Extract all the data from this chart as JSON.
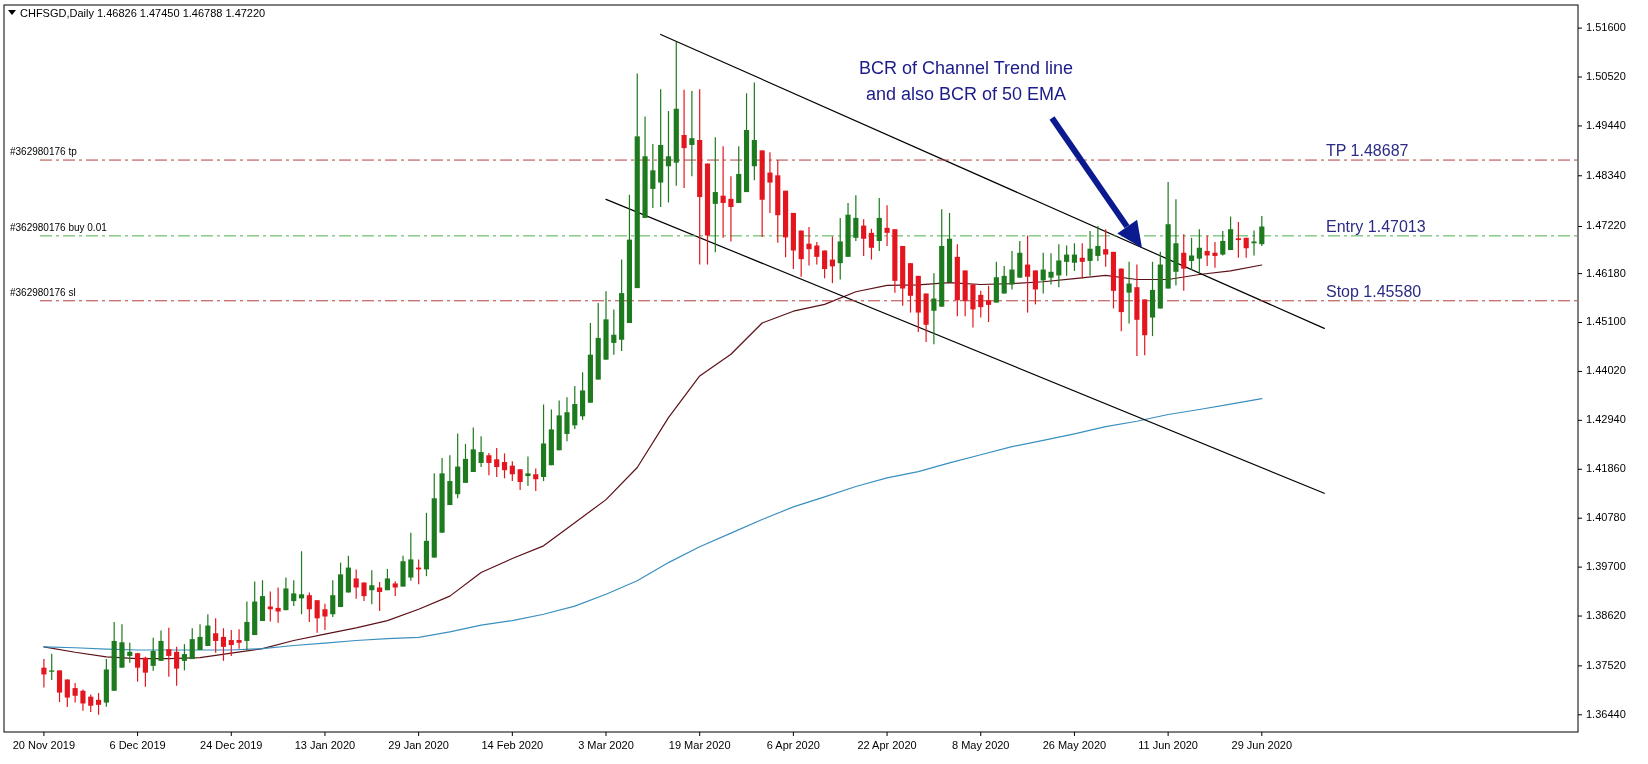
{
  "chart_data": {
    "type": "candlestick",
    "title": "CHFSGD,Daily  1.46826 1.47450 1.46788 1.47220",
    "categories": [
      "20 Nov 2019",
      null,
      null,
      null,
      null,
      null,
      null,
      null,
      null,
      null,
      null,
      null,
      "6 Dec 2019",
      null,
      null,
      null,
      null,
      null,
      null,
      null,
      null,
      null,
      null,
      null,
      "24 Dec 2019",
      null,
      null,
      null,
      null,
      null,
      null,
      null,
      null,
      null,
      null,
      null,
      "13 Jan 2020",
      null,
      null,
      null,
      null,
      null,
      null,
      null,
      null,
      null,
      null,
      null,
      "29 Jan 2020",
      null,
      null,
      null,
      null,
      null,
      null,
      null,
      null,
      null,
      null,
      null,
      "14 Feb 2020",
      null,
      null,
      null,
      null,
      null,
      null,
      null,
      null,
      null,
      null,
      null,
      "3 Mar 2020",
      null,
      null,
      null,
      null,
      null,
      null,
      null,
      null,
      null,
      null,
      null,
      "19 Mar 2020",
      null,
      null,
      null,
      null,
      null,
      null,
      null,
      null,
      null,
      null,
      null,
      "6 Apr 2020",
      null,
      null,
      null,
      null,
      null,
      null,
      null,
      null,
      null,
      null,
      null,
      "22 Apr 2020",
      null,
      null,
      null,
      null,
      null,
      null,
      null,
      null,
      null,
      null,
      null,
      "8 May 2020",
      null,
      null,
      null,
      null,
      null,
      null,
      null,
      null,
      null,
      null,
      null,
      "26 May 2020",
      null,
      null,
      null,
      null,
      null,
      null,
      null,
      null,
      null,
      null,
      null,
      "11 Jun 2020",
      null,
      null,
      null,
      null,
      null,
      null,
      null,
      null,
      null,
      null,
      null,
      "29 Jun 2020",
      null,
      null,
      null,
      null,
      null,
      null,
      null,
      null,
      null,
      null,
      null,
      null,
      null,
      null,
      null,
      null,
      null,
      null,
      null,
      null,
      null,
      null,
      null,
      null,
      null,
      null,
      null,
      null,
      null,
      null,
      null,
      null,
      null,
      null,
      null,
      null,
      null,
      null,
      null,
      null
    ],
    "ohlc": [
      [
        1.3748,
        1.3767,
        1.3704,
        1.3733
      ],
      [
        1.3739,
        1.3779,
        1.3721,
        1.3742
      ],
      [
        1.3742,
        1.3742,
        1.3672,
        1.3693
      ],
      [
        1.3722,
        1.3722,
        1.3661,
        1.3682
      ],
      [
        1.3703,
        1.3714,
        1.3671,
        1.3686
      ],
      [
        1.3697,
        1.37,
        1.3653,
        1.3669
      ],
      [
        1.3684,
        1.3689,
        1.365,
        1.3664
      ],
      [
        1.3677,
        1.3692,
        1.3644,
        1.3666
      ],
      [
        1.3671,
        1.3767,
        1.3662,
        1.3744
      ],
      [
        1.3697,
        1.3849,
        1.3697,
        1.3807
      ],
      [
        1.3748,
        1.3844,
        1.3748,
        1.3804
      ],
      [
        1.3774,
        1.3803,
        1.3759,
        1.3783
      ],
      [
        1.378,
        1.3781,
        1.3717,
        1.3748
      ],
      [
        1.377,
        1.3772,
        1.3706,
        1.3737
      ],
      [
        1.3752,
        1.3814,
        1.3741,
        1.3785
      ],
      [
        1.3763,
        1.383,
        1.3763,
        1.3807
      ],
      [
        1.3789,
        1.3836,
        1.3728,
        1.3774
      ],
      [
        1.3783,
        1.3794,
        1.3708,
        1.3746
      ],
      [
        1.3763,
        1.38,
        1.3742,
        1.3778
      ],
      [
        1.3767,
        1.3835,
        1.3767,
        1.3811
      ],
      [
        1.3787,
        1.3844,
        1.3787,
        1.3816
      ],
      [
        1.3796,
        1.3866,
        1.3796,
        1.3841
      ],
      [
        1.3824,
        1.3857,
        1.3781,
        1.3807
      ],
      [
        1.3816,
        1.3835,
        1.3763,
        1.3794
      ],
      [
        1.3809,
        1.3831,
        1.3774,
        1.3798
      ],
      [
        1.3809,
        1.3833,
        1.379,
        1.3803
      ],
      [
        1.3807,
        1.3894,
        1.3787,
        1.3849
      ],
      [
        1.382,
        1.3938,
        1.382,
        1.3894
      ],
      [
        1.3851,
        1.3941,
        1.3851,
        1.3906
      ],
      [
        1.3883,
        1.3916,
        1.385,
        1.3877
      ],
      [
        1.388,
        1.3925,
        1.3847,
        1.3872
      ],
      [
        1.3875,
        1.3947,
        1.3875,
        1.3923
      ],
      [
        1.3895,
        1.3941,
        1.3884,
        1.3912
      ],
      [
        1.3901,
        1.4005,
        1.3866,
        1.391
      ],
      [
        1.3908,
        1.3914,
        1.3849,
        1.3877
      ],
      [
        1.3897,
        1.3897,
        1.3825,
        1.3857
      ],
      [
        1.3877,
        1.3889,
        1.3831,
        1.3861
      ],
      [
        1.3866,
        1.3941,
        1.386,
        1.3908
      ],
      [
        1.3882,
        1.398,
        1.3882,
        1.3954
      ],
      [
        1.3914,
        1.3995,
        1.3914,
        1.3969
      ],
      [
        1.3945,
        1.3965,
        1.39,
        1.3925
      ],
      [
        1.3936,
        1.3936,
        1.3895,
        1.3906
      ],
      [
        1.3919,
        1.3963,
        1.3888,
        1.393
      ],
      [
        1.3925,
        1.3937,
        1.3873,
        1.3915
      ],
      [
        1.3919,
        1.3966,
        1.3919,
        1.3945
      ],
      [
        1.3934,
        1.3939,
        1.3906,
        1.3925
      ],
      [
        1.3927,
        1.3995,
        1.3927,
        1.3983
      ],
      [
        1.3947,
        1.4046,
        1.394,
        1.3987
      ],
      [
        1.3969,
        1.3987,
        1.3932,
        1.3965
      ],
      [
        1.3965,
        1.409,
        1.395,
        1.4028
      ],
      [
        1.3991,
        1.4177,
        1.3991,
        1.4122
      ],
      [
        1.4046,
        1.4211,
        1.4046,
        1.4177
      ],
      [
        1.4107,
        1.4217,
        1.4107,
        1.416
      ],
      [
        1.4131,
        1.4265,
        1.4122,
        1.4192
      ],
      [
        1.4156,
        1.4242,
        1.4156,
        1.4209
      ],
      [
        1.418,
        1.4278,
        1.418,
        1.423
      ],
      [
        1.42,
        1.4259,
        1.4191,
        1.4224
      ],
      [
        1.4217,
        1.4222,
        1.4173,
        1.42
      ],
      [
        1.4208,
        1.4233,
        1.4169,
        1.4191
      ],
      [
        1.4202,
        1.4221,
        1.4166,
        1.4184
      ],
      [
        1.4194,
        1.4204,
        1.416,
        1.4175
      ],
      [
        1.4186,
        1.4186,
        1.414,
        1.4158
      ],
      [
        1.4171,
        1.4214,
        1.4149,
        1.4177
      ],
      [
        1.4175,
        1.4188,
        1.4138,
        1.4164
      ],
      [
        1.4169,
        1.4329,
        1.416,
        1.4243
      ],
      [
        1.4195,
        1.4318,
        1.4195,
        1.4274
      ],
      [
        1.4228,
        1.4338,
        1.4228,
        1.4305
      ],
      [
        1.4264,
        1.4345,
        1.4248,
        1.4312
      ],
      [
        1.4283,
        1.437,
        1.4275,
        1.433
      ],
      [
        1.4303,
        1.44,
        1.4295,
        1.436
      ],
      [
        1.4333,
        1.4509,
        1.4333,
        1.4439
      ],
      [
        1.4384,
        1.4553,
        1.4384,
        1.4476
      ],
      [
        1.4428,
        1.4579,
        1.4428,
        1.4517
      ],
      [
        1.4465,
        1.4539,
        1.4439,
        1.4483
      ],
      [
        1.4472,
        1.4649,
        1.4447,
        1.4575
      ],
      [
        1.4509,
        1.4792,
        1.4509,
        1.4693
      ],
      [
        1.4586,
        1.506,
        1.4586,
        1.4921
      ],
      [
        1.4741,
        1.4965,
        1.4741,
        1.4877
      ],
      [
        1.4805,
        1.4904,
        1.4763,
        1.4846
      ],
      [
        1.4819,
        1.5025,
        1.4765,
        1.4902
      ],
      [
        1.4855,
        1.4977,
        1.4775,
        1.4877
      ],
      [
        1.4863,
        1.513,
        1.4812,
        1.4982
      ],
      [
        1.4924,
        1.5024,
        1.4807,
        1.4895
      ],
      [
        1.4902,
        1.5021,
        1.4833,
        1.4917
      ],
      [
        1.4913,
        1.5025,
        1.4638,
        1.4787
      ],
      [
        1.4861,
        1.4861,
        1.4638,
        1.4702
      ],
      [
        1.4772,
        1.4919,
        1.4665,
        1.4798
      ],
      [
        1.479,
        1.4899,
        1.4697,
        1.4774
      ],
      [
        1.4783,
        1.4833,
        1.4689,
        1.4765
      ],
      [
        1.4774,
        1.4899,
        1.4774,
        1.4838
      ],
      [
        1.4798,
        1.5016,
        1.4798,
        1.4935
      ],
      [
        1.4855,
        1.504,
        1.4824,
        1.4913
      ],
      [
        1.489,
        1.489,
        1.4699,
        1.4781
      ],
      [
        1.4841,
        1.4886,
        1.4752,
        1.4819
      ],
      [
        1.4835,
        1.4869,
        1.4686,
        1.4747
      ],
      [
        1.4801,
        1.4801,
        1.4654,
        1.4698
      ],
      [
        1.4752,
        1.4752,
        1.4628,
        1.4669
      ],
      [
        1.4713,
        1.4713,
        1.4611,
        1.465
      ],
      [
        1.4684,
        1.4721,
        1.4636,
        1.4672
      ],
      [
        1.468,
        1.4688,
        1.4638,
        1.4655
      ],
      [
        1.4669,
        1.4669,
        1.4608,
        1.4628
      ],
      [
        1.4649,
        1.47,
        1.4597,
        1.4634
      ],
      [
        1.4641,
        1.4741,
        1.4605,
        1.4689
      ],
      [
        1.4655,
        1.4774,
        1.4655,
        1.4748
      ],
      [
        1.4697,
        1.4791,
        1.469,
        1.4741
      ],
      [
        1.4724,
        1.4738,
        1.4657,
        1.4695
      ],
      [
        1.4708,
        1.4717,
        1.4649,
        1.4675
      ],
      [
        1.469,
        1.4785,
        1.4668,
        1.4741
      ],
      [
        1.4719,
        1.4769,
        1.4679,
        1.4708
      ],
      [
        1.4716,
        1.4716,
        1.4576,
        1.4602
      ],
      [
        1.4679,
        1.4679,
        1.4547,
        1.4585
      ],
      [
        1.4641,
        1.4641,
        1.4532,
        1.4569
      ],
      [
        1.4613,
        1.4613,
        1.4489,
        1.4532
      ],
      [
        1.4574,
        1.4574,
        1.4467,
        1.4505
      ],
      [
        1.4536,
        1.4619,
        1.4462,
        1.4563
      ],
      [
        1.4545,
        1.476,
        1.4545,
        1.4679
      ],
      [
        1.4599,
        1.4752,
        1.4599,
        1.4695
      ],
      [
        1.4655,
        1.4683,
        1.4524,
        1.4559
      ],
      [
        1.4625,
        1.4625,
        1.4524,
        1.4558
      ],
      [
        1.4594,
        1.4594,
        1.4499,
        1.4539
      ],
      [
        1.4571,
        1.458,
        1.4521,
        1.4544
      ],
      [
        1.4559,
        1.4591,
        1.4511,
        1.4549
      ],
      [
        1.4554,
        1.4644,
        1.4554,
        1.461
      ],
      [
        1.4574,
        1.4635,
        1.4574,
        1.4613
      ],
      [
        1.4594,
        1.4668,
        1.4583,
        1.4627
      ],
      [
        1.4609,
        1.469,
        1.4609,
        1.4664
      ],
      [
        1.4638,
        1.4702,
        1.4532,
        1.4611
      ],
      [
        1.4625,
        1.4625,
        1.455,
        1.4583
      ],
      [
        1.4603,
        1.4664,
        1.4574,
        1.4627
      ],
      [
        1.4609,
        1.4663,
        1.4594,
        1.4622
      ],
      [
        1.4614,
        1.4683,
        1.4588,
        1.4647
      ],
      [
        1.4644,
        1.468,
        1.4613,
        1.466
      ],
      [
        1.4642,
        1.4685,
        1.4624,
        1.466
      ],
      [
        1.4653,
        1.4685,
        1.4607,
        1.4644
      ],
      [
        1.4646,
        1.4712,
        1.4613,
        1.4673
      ],
      [
        1.4657,
        1.4723,
        1.4646,
        1.4679
      ],
      [
        1.4672,
        1.4716,
        1.4633,
        1.466
      ],
      [
        1.4666,
        1.4666,
        1.4541,
        1.458
      ],
      [
        1.4629,
        1.4629,
        1.4491,
        1.4533
      ],
      [
        1.4576,
        1.4644,
        1.4508,
        1.4596
      ],
      [
        1.4588,
        1.4638,
        1.4436,
        1.4516
      ],
      [
        1.4561,
        1.4561,
        1.4438,
        1.4482
      ],
      [
        1.4521,
        1.4644,
        1.448,
        1.4582
      ],
      [
        1.4541,
        1.4666,
        1.4541,
        1.4638
      ],
      [
        1.4585,
        1.482,
        1.4585,
        1.4727
      ],
      [
        1.4622,
        1.4782,
        1.4592,
        1.4685
      ],
      [
        1.4664,
        1.4705,
        1.458,
        1.4629
      ],
      [
        1.4646,
        1.4697,
        1.4626,
        1.4658
      ],
      [
        1.4651,
        1.4716,
        1.462,
        1.4675
      ],
      [
        1.4668,
        1.4702,
        1.4635,
        1.4658
      ],
      [
        1.4664,
        1.4688,
        1.4631,
        1.4657
      ],
      [
        1.466,
        1.4712,
        1.4658,
        1.469
      ],
      [
        1.467,
        1.4744,
        1.467,
        1.4716
      ],
      [
        1.4696,
        1.4732,
        1.4653,
        1.4692
      ],
      [
        1.4697,
        1.4697,
        1.4653,
        1.4674
      ],
      [
        1.4685,
        1.4713,
        1.4658,
        1.4689
      ],
      [
        1.4683,
        1.4745,
        1.4679,
        1.4722
      ],
      null,
      null,
      null,
      null,
      null,
      null,
      null,
      null,
      null,
      null,
      null,
      null,
      null,
      null,
      null,
      null,
      null,
      null,
      null,
      null,
      null,
      null,
      null,
      null,
      null,
      null,
      null,
      null,
      null,
      null,
      null,
      null,
      null,
      null,
      null,
      null,
      null,
      null,
      null,
      null
    ],
    "series": [
      {
        "type": "line",
        "color": "#5c1018",
        "values": [
          1.3794,
          null,
          null,
          null,
          1.3782,
          null,
          null,
          null,
          1.3772,
          null,
          null,
          null,
          1.3768,
          null,
          null,
          null,
          1.3768,
          null,
          null,
          null,
          1.377,
          null,
          null,
          null,
          1.378,
          null,
          null,
          null,
          1.379,
          null,
          null,
          null,
          1.3808,
          null,
          null,
          null,
          1.3822,
          null,
          null,
          null,
          1.3836,
          null,
          null,
          null,
          1.3852,
          null,
          null,
          null,
          1.3877,
          null,
          null,
          null,
          1.3906,
          null,
          null,
          null,
          1.3958,
          null,
          null,
          null,
          1.3989,
          null,
          null,
          null,
          1.4017,
          null,
          null,
          null,
          1.4068,
          null,
          null,
          null,
          1.4119,
          null,
          null,
          null,
          1.419,
          null,
          null,
          null,
          1.43,
          null,
          null,
          null,
          1.4392,
          null,
          null,
          null,
          1.444,
          null,
          null,
          null,
          1.4509,
          null,
          null,
          null,
          1.4535,
          null,
          null,
          null,
          1.455,
          null,
          null,
          null,
          1.4578,
          null,
          null,
          null,
          1.4592,
          null,
          null,
          null,
          1.4593,
          null,
          null,
          null,
          1.4598,
          null,
          null,
          null,
          1.4594,
          null,
          null,
          null,
          1.4596,
          null,
          null,
          null,
          1.46,
          null,
          null,
          null,
          1.4607,
          null,
          null,
          null,
          1.4614,
          null,
          null,
          null,
          1.4605,
          null,
          null,
          null,
          1.4605,
          null,
          null,
          null,
          1.4616,
          null,
          null,
          null,
          1.4624,
          null,
          null,
          null,
          1.4637,
          null,
          null,
          null,
          null,
          null,
          null,
          null,
          null,
          null,
          null,
          null,
          null,
          null,
          null,
          null,
          null,
          null,
          null,
          null,
          null,
          null,
          null,
          null,
          null,
          null,
          null,
          null,
          null,
          null,
          null,
          null,
          null,
          null,
          null,
          null,
          null,
          null,
          null,
          null,
          null
        ]
      },
      {
        "type": "line",
        "color": "#3a8fc0",
        "values": [
          1.3794,
          null,
          null,
          null,
          1.3792,
          null,
          null,
          null,
          1.3789,
          null,
          null,
          null,
          1.3787,
          null,
          null,
          null,
          1.3787,
          null,
          null,
          null,
          1.3787,
          null,
          null,
          null,
          1.3787,
          null,
          null,
          null,
          1.379,
          null,
          null,
          null,
          1.3797,
          null,
          null,
          null,
          1.3802,
          null,
          null,
          null,
          1.3808,
          null,
          null,
          null,
          1.3812,
          null,
          null,
          null,
          1.3815,
          null,
          null,
          null,
          1.3827,
          null,
          null,
          null,
          1.3842,
          null,
          null,
          null,
          1.3852,
          null,
          null,
          null,
          1.3866,
          null,
          null,
          null,
          1.3884,
          null,
          null,
          null,
          1.391,
          null,
          null,
          null,
          1.394,
          null,
          null,
          null,
          1.398,
          null,
          null,
          null,
          1.4015,
          null,
          null,
          null,
          1.4045,
          null,
          null,
          null,
          1.4075,
          null,
          null,
          null,
          1.4103,
          null,
          null,
          null,
          1.4125,
          null,
          null,
          null,
          1.4148,
          null,
          null,
          null,
          1.4167,
          null,
          null,
          null,
          1.4181,
          null,
          null,
          null,
          1.42,
          null,
          null,
          null,
          1.4218,
          null,
          null,
          null,
          1.4236,
          null,
          null,
          null,
          1.425,
          null,
          null,
          null,
          1.4264,
          null,
          null,
          null,
          1.428,
          null,
          null,
          null,
          1.4292,
          null,
          null,
          null,
          1.4307,
          null,
          null,
          null,
          1.4318,
          null,
          null,
          null,
          1.433,
          null,
          null,
          null,
          1.4342,
          null,
          null,
          null,
          null,
          null,
          null,
          null,
          null,
          null,
          null,
          null,
          null,
          null,
          null,
          null,
          null,
          null,
          null,
          null,
          null,
          null,
          null,
          null,
          null,
          null,
          null,
          null,
          null,
          null,
          null,
          null,
          null,
          null,
          null,
          null,
          null,
          null,
          null,
          null,
          null
        ]
      },
      {
        "type": "line",
        "color": "#000000",
        "values": [
          null,
          null,
          null,
          null,
          null,
          null,
          null,
          null,
          null,
          null,
          null,
          null,
          null,
          null,
          null,
          null,
          null,
          null,
          null,
          null,
          null,
          null,
          null,
          null,
          null,
          null,
          null,
          null,
          null,
          null,
          null,
          null,
          null,
          null,
          null,
          null,
          null,
          null,
          null,
          null,
          null,
          null,
          null,
          null,
          null,
          null,
          null,
          null,
          null,
          null,
          null,
          null,
          null,
          null,
          null,
          null,
          null,
          null,
          null,
          null,
          null,
          null,
          null,
          null,
          null,
          null,
          null,
          null,
          null,
          null,
          null,
          null,
          null,
          null,
          null,
          null,
          null,
          null,
          null,
          1.5146,
          null,
          null,
          null,
          null,
          null,
          null,
          null,
          null,
          null,
          null,
          null,
          null,
          null,
          null,
          null,
          null,
          null,
          null,
          null,
          null,
          null,
          null,
          null,
          null,
          null,
          null,
          null,
          null,
          null,
          null,
          null,
          null,
          null,
          null,
          null,
          null,
          null,
          null,
          null,
          null,
          null,
          null,
          null,
          null,
          null,
          null,
          null,
          null,
          null,
          null,
          null,
          null,
          null,
          null,
          null,
          null,
          null,
          null,
          null,
          null,
          null,
          null,
          null,
          null,
          null,
          null,
          null,
          null,
          null,
          null,
          null,
          null,
          null,
          null,
          null,
          null,
          null,
          null,
          null,
          null,
          null,
          null,
          null,
          null,
          1.4497,
          null,
          null,
          null,
          null,
          null,
          null,
          null,
          null,
          null,
          null,
          null,
          null,
          null,
          null,
          null,
          null,
          null,
          null,
          null,
          null,
          null,
          null,
          null,
          null,
          null,
          null,
          null,
          null,
          null,
          null,
          null,
          null
        ]
      },
      {
        "type": "line",
        "color": "#000000",
        "values": [
          null,
          null,
          null,
          null,
          null,
          null,
          null,
          null,
          null,
          null,
          null,
          null,
          null,
          null,
          null,
          null,
          null,
          null,
          null,
          null,
          null,
          null,
          null,
          null,
          null,
          null,
          null,
          null,
          null,
          null,
          null,
          null,
          null,
          null,
          null,
          null,
          null,
          null,
          null,
          null,
          null,
          null,
          null,
          null,
          null,
          null,
          null,
          null,
          null,
          null,
          null,
          null,
          null,
          null,
          null,
          null,
          null,
          null,
          null,
          null,
          null,
          null,
          null,
          null,
          null,
          null,
          null,
          null,
          null,
          null,
          null,
          null,
          1.4782,
          null,
          null,
          null,
          null,
          null,
          null,
          null,
          null,
          null,
          null,
          null,
          null,
          null,
          null,
          null,
          null,
          null,
          null,
          null,
          null,
          null,
          null,
          null,
          null,
          null,
          null,
          null,
          null,
          null,
          null,
          null,
          null,
          null,
          null,
          null,
          null,
          null,
          null,
          null,
          null,
          null,
          null,
          null,
          null,
          null,
          null,
          null,
          null,
          null,
          null,
          null,
          null,
          null,
          null,
          null,
          null,
          null,
          null,
          null,
          null,
          null,
          null,
          null,
          null,
          null,
          null,
          null,
          null,
          null,
          null,
          null,
          null,
          null,
          null,
          null,
          null,
          null,
          null,
          null,
          null,
          null,
          null,
          null,
          null,
          null,
          null,
          null,
          null,
          null,
          null,
          null,
          1.4133,
          null,
          null,
          null,
          null,
          null,
          null,
          null,
          null,
          null,
          null,
          null,
          null,
          null,
          null,
          null,
          null,
          null,
          null,
          null,
          null,
          null,
          null,
          null,
          null,
          null,
          null,
          null,
          null,
          null,
          null,
          null,
          null
        ]
      }
    ],
    "ylim": [
      1.3606,
      1.5211
    ],
    "yticks": [
      {
        "value": 1.516,
        "label": "1.51600"
      },
      {
        "value": 1.5052,
        "label": "1.50520"
      },
      {
        "value": 1.4944,
        "label": "1.49440"
      },
      {
        "value": 1.4834,
        "label": "1.48340"
      },
      {
        "value": 1.4722,
        "label": "1.47220"
      },
      {
        "value": 1.4618,
        "label": "1.46180"
      },
      {
        "value": 1.451,
        "label": "1.45100"
      },
      {
        "value": 1.4402,
        "label": "1.44020"
      },
      {
        "value": 1.4294,
        "label": "1.42940"
      },
      {
        "value": 1.4186,
        "label": "1.41860"
      },
      {
        "value": 1.4078,
        "label": "1.40780"
      },
      {
        "value": 1.397,
        "label": "1.39700"
      },
      {
        "value": 1.3862,
        "label": "1.38620"
      },
      {
        "value": 1.3752,
        "label": "1.37520"
      },
      {
        "value": 1.3644,
        "label": "1.36440"
      }
    ],
    "ref_lines": [
      {
        "axis": "y",
        "value": 1.48687,
        "label": "TP 1.48687",
        "color": "#b0413e",
        "line_style": "dashed"
      },
      {
        "axis": "y",
        "value": 1.47013,
        "label": "Entry 1.47013",
        "color": "#4caf50",
        "line_style": "dashed"
      },
      {
        "axis": "y",
        "value": 1.4558,
        "label": "Stop 1.45580",
        "color": "#b0413e",
        "line_style": "dashed"
      }
    ],
    "annotations": [
      {
        "text": "#362980176 tp",
        "y": 1.48687
      },
      {
        "text": "#362980176 buy 0.01",
        "y": 1.47013
      },
      {
        "text": "#362980176 sl",
        "y": 1.4558
      },
      "BCR of Channel Trend line\nand also BCR of 50 EMA"
    ]
  }
}
